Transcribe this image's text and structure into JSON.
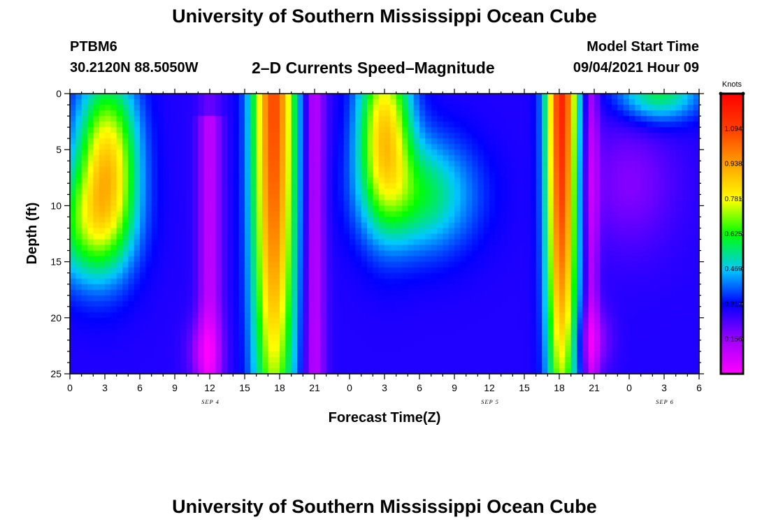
{
  "header": {
    "title": "University of Southern Mississippi Ocean Cube",
    "station": "PTBM6",
    "coords": "30.2120N  88.5050W",
    "subtitle": "2–D Currents Speed–Magnitude",
    "model_label": "Model Start Time",
    "model_time": "09/04/2021 Hour 09"
  },
  "footer": {
    "title": "University of Southern Mississippi Ocean Cube"
  },
  "chart_data": {
    "type": "heatmap",
    "xlabel": "Forecast Time(Z)",
    "ylabel": "Depth (ft)",
    "x_tick_labels": [
      "0",
      "3",
      "6",
      "9",
      "12",
      "15",
      "18",
      "21",
      "0",
      "3",
      "6",
      "9",
      "12",
      "15",
      "18",
      "21",
      "0",
      "3",
      "6"
    ],
    "x_range_hours": [
      0,
      54
    ],
    "date_labels": [
      {
        "label": "SEP 4",
        "hour": 12
      },
      {
        "label": "SEP 5",
        "hour": 36
      },
      {
        "label": "SEP 6",
        "hour": 51
      }
    ],
    "y_ticks": [
      0,
      5,
      10,
      15,
      20,
      25
    ],
    "ylim": [
      25,
      0
    ],
    "colorbar": {
      "unit": "Knots",
      "tick_labels": [
        "1.094",
        "0.938",
        "0.781",
        "0.625",
        "0.469",
        "0.312",
        "0.156"
      ],
      "tick_values": [
        1.094,
        0.938,
        0.781,
        0.625,
        0.469,
        0.312,
        0.156
      ],
      "range": [
        0.0,
        1.25
      ]
    }
  }
}
